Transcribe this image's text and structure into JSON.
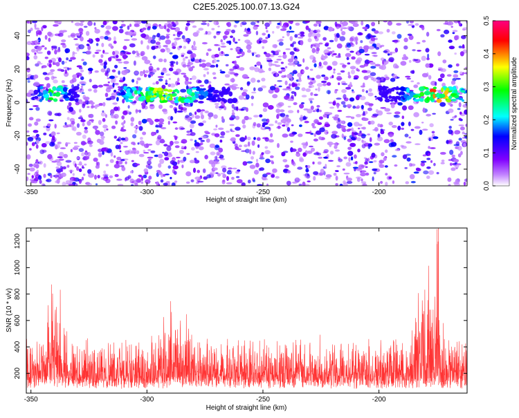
{
  "title": "C2E5.2025.100.07.13.G24",
  "chart_data": [
    {
      "type": "heatmap",
      "xlabel": "Height of straight line (km)",
      "ylabel": "Frequency (Hz)",
      "xlim": [
        -352,
        -162
      ],
      "ylim": [
        -50,
        49
      ],
      "xticks": [
        -350,
        -300,
        -250,
        -200
      ],
      "yticks": [
        -40,
        -20,
        0,
        20,
        40
      ],
      "colorbar": {
        "label": "Normalized spectral amplitude",
        "range": [
          0.0,
          0.5
        ],
        "ticks": [
          0.0,
          0.1,
          0.2,
          0.3,
          0.4,
          0.5
        ],
        "colors": [
          "#ffffff",
          "#8000ff",
          "#0000ff",
          "#00ffff",
          "#00ff00",
          "#ffff00",
          "#ff0000",
          "#ff0080"
        ]
      },
      "signal_band": {
        "frequency_hz": 5,
        "segments": [
          {
            "x": [
              -348,
              -330
            ],
            "peak_x": -340,
            "peak_value": 0.33
          },
          {
            "x": [
              -313,
              -262
            ],
            "peak_x": -293,
            "peak_value": 0.42
          },
          {
            "x": [
              -200,
              -162
            ],
            "peak_x": -175,
            "peak_value": 0.46
          }
        ]
      },
      "grid": false
    },
    {
      "type": "line",
      "xlabel": "Height of straight line (km)",
      "ylabel": "SNR (10 * v/v)",
      "xlim": [
        -352,
        -162
      ],
      "ylim": [
        50,
        1300
      ],
      "xticks": [
        -350,
        -300,
        -250,
        -200
      ],
      "yticks": [
        200,
        400,
        600,
        800,
        1000,
        1200
      ],
      "series": [
        {
          "color": "#ff3333",
          "baseline": 230,
          "features": [
            {
              "x": -340,
              "value": 780
            },
            {
              "x": -291,
              "value": 660
            },
            {
              "x": -282,
              "value": 560
            },
            {
              "x": -180,
              "value": 840
            },
            {
              "x": -175,
              "value": 1290
            }
          ]
        }
      ],
      "grid": false
    }
  ]
}
